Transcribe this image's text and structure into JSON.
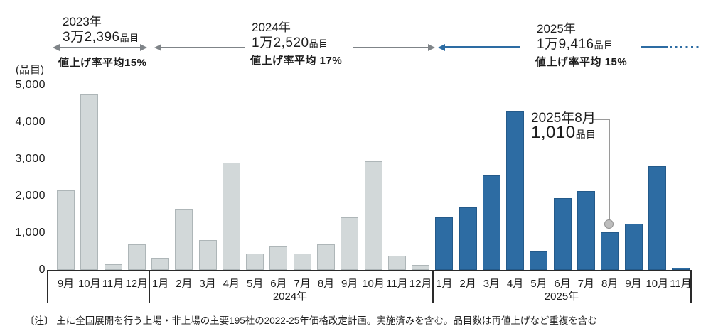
{
  "header": {
    "y2023": {
      "year": "2023年",
      "count": "3万2,396",
      "count_suffix": "品目",
      "rate": "値上げ率平均15%"
    },
    "y2024": {
      "year": "2024年",
      "count": "1万2,520",
      "count_suffix": "品目",
      "rate": "値上げ率平均  17%"
    },
    "y2025": {
      "year": "2025年",
      "count": "1万9,416",
      "count_suffix": "品目",
      "rate": "値上げ率平均  15%"
    }
  },
  "y_axis": {
    "unit": "(品目)",
    "ticks": [
      "5,000",
      "4,000",
      "3,000",
      "2,000",
      "1,000",
      "0"
    ]
  },
  "chart_data": {
    "type": "bar",
    "title": "",
    "ylabel": "品目",
    "ylim": [
      0,
      5000
    ],
    "grid": false,
    "sections": [
      {
        "year": 2023,
        "year_label": "",
        "months": [
          "9月",
          "10月",
          "11月",
          "12月"
        ],
        "values": [
          2150,
          4750,
          150,
          700
        ],
        "color_key": "gray"
      },
      {
        "year": 2024,
        "year_label": "2024年",
        "months": [
          "1月",
          "2月",
          "3月",
          "4月",
          "5月",
          "6月",
          "7月",
          "8月",
          "9月",
          "10月",
          "11月",
          "12月"
        ],
        "values": [
          320,
          1650,
          800,
          2900,
          450,
          630,
          440,
          690,
          1430,
          2950,
          380,
          130
        ],
        "color_key": "gray"
      },
      {
        "year": 2025,
        "year_label": "2025年",
        "months": [
          "1月",
          "2月",
          "3月",
          "4月",
          "5月",
          "6月",
          "7月",
          "8月",
          "9月",
          "10月",
          "11月"
        ],
        "values": [
          1430,
          1700,
          2550,
          4300,
          500,
          1950,
          2130,
          1010,
          1250,
          2800,
          60
        ],
        "color_key": "blue"
      }
    ],
    "annotation": {
      "line1": "2025年8月",
      "value_text": "1,010",
      "value_suffix": "品目",
      "target_year": 2025,
      "target_month": "8月",
      "target_value": 1010
    }
  },
  "note": "〔注〕 主に全国展開を行う上場・非上場の主要195社の2022-25年価格改定計画。実施済みを含む。品目数は再値上げなど重複を含む",
  "colors": {
    "bar_gray": "#d2d8d9",
    "bar_blue": "#2d6ca3",
    "arrow_gray": "#7f8488",
    "arrow_blue": "#2d6ca3"
  }
}
